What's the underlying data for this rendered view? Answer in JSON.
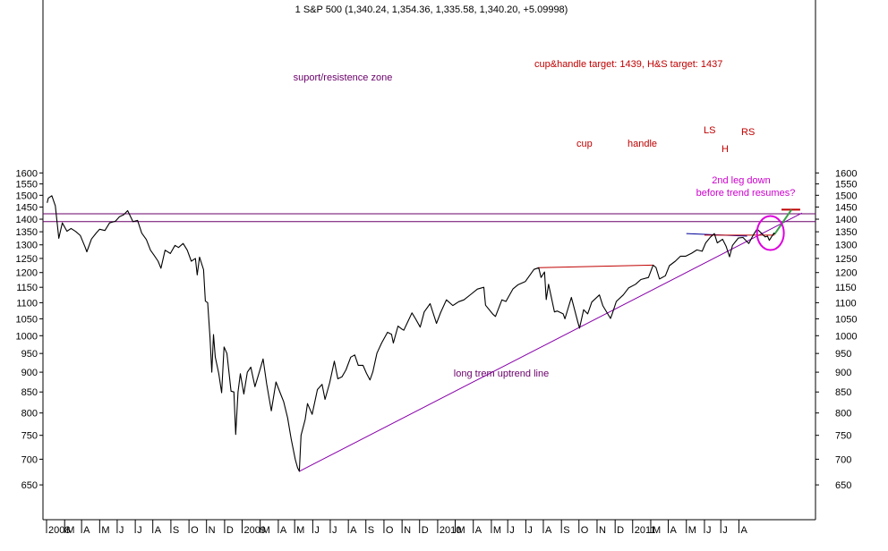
{
  "chart_data": {
    "type": "line",
    "title": "1 S&P 500 (1,340.24, 1,354.36, 1,335.58, 1,340.20, +5.09998)",
    "scale": "log",
    "ylim": [
      620,
      1600
    ],
    "y_ticks": [
      650,
      700,
      750,
      800,
      850,
      900,
      950,
      1000,
      1050,
      1100,
      1150,
      1200,
      1250,
      1300,
      1350,
      1400,
      1450,
      1500,
      1550,
      1600
    ],
    "x_ticks": [
      "2008",
      "M",
      "A",
      "M",
      "J",
      "J",
      "A",
      "S",
      "O",
      "N",
      "D",
      "2009",
      "M",
      "A",
      "M",
      "J",
      "J",
      "A",
      "S",
      "O",
      "N",
      "D",
      "2010",
      "M",
      "A",
      "M",
      "J",
      "J",
      "A",
      "S",
      "O",
      "N",
      "D",
      "2011",
      "M",
      "A",
      "M",
      "J",
      "J",
      "A"
    ],
    "series": [
      {
        "values": [
          [
            "2008-01-02",
            1468
          ],
          [
            "2008-01-04",
            1488
          ],
          [
            "2008-01-10",
            1498
          ],
          [
            "2008-01-16",
            1455
          ],
          [
            "2008-01-22",
            1325
          ],
          [
            "2008-01-28",
            1385
          ],
          [
            "2008-02-05",
            1352
          ],
          [
            "2008-02-12",
            1363
          ],
          [
            "2008-02-20",
            1351
          ],
          [
            "2008-02-28",
            1335
          ],
          [
            "2008-03-07",
            1292
          ],
          [
            "2008-03-10",
            1274
          ],
          [
            "2008-03-18",
            1322
          ],
          [
            "2008-03-26",
            1345
          ],
          [
            "2008-04-01",
            1360
          ],
          [
            "2008-04-10",
            1355
          ],
          [
            "2008-04-18",
            1385
          ],
          [
            "2008-04-28",
            1392
          ],
          [
            "2008-05-05",
            1410
          ],
          [
            "2008-05-12",
            1418
          ],
          [
            "2008-05-19",
            1435
          ],
          [
            "2008-05-28",
            1390
          ],
          [
            "2008-06-05",
            1395
          ],
          [
            "2008-06-12",
            1345
          ],
          [
            "2008-06-20",
            1320
          ],
          [
            "2008-06-27",
            1280
          ],
          [
            "2008-07-03",
            1262
          ],
          [
            "2008-07-10",
            1240
          ],
          [
            "2008-07-15",
            1215
          ],
          [
            "2008-07-22",
            1280
          ],
          [
            "2008-07-31",
            1268
          ],
          [
            "2008-08-08",
            1298
          ],
          [
            "2008-08-14",
            1290
          ],
          [
            "2008-08-22",
            1305
          ],
          [
            "2008-08-29",
            1280
          ],
          [
            "2008-09-05",
            1240
          ],
          [
            "2008-09-12",
            1250
          ],
          [
            "2008-09-15",
            1192
          ],
          [
            "2008-09-19",
            1255
          ],
          [
            "2008-09-26",
            1210
          ],
          [
            "2008-09-29",
            1105
          ],
          [
            "2008-10-03",
            1100
          ],
          [
            "2008-10-07",
            995
          ],
          [
            "2008-10-10",
            900
          ],
          [
            "2008-10-13",
            1003
          ],
          [
            "2008-10-16",
            940
          ],
          [
            "2008-10-22",
            896
          ],
          [
            "2008-10-27",
            848
          ],
          [
            "2008-10-31",
            968
          ],
          [
            "2008-11-05",
            950
          ],
          [
            "2008-11-12",
            852
          ],
          [
            "2008-11-17",
            850
          ],
          [
            "2008-11-20",
            752
          ],
          [
            "2008-11-24",
            850
          ],
          [
            "2008-11-28",
            896
          ],
          [
            "2008-12-04",
            845
          ],
          [
            "2008-12-10",
            900
          ],
          [
            "2008-12-16",
            913
          ],
          [
            "2008-12-23",
            863
          ],
          [
            "2008-12-31",
            903
          ],
          [
            "2009-01-06",
            935
          ],
          [
            "2009-01-12",
            870
          ],
          [
            "2009-01-20",
            805
          ],
          [
            "2009-01-28",
            875
          ],
          [
            "2009-02-05",
            845
          ],
          [
            "2009-02-10",
            827
          ],
          [
            "2009-02-17",
            789
          ],
          [
            "2009-02-23",
            743
          ],
          [
            "2009-03-02",
            700
          ],
          [
            "2009-03-06",
            683
          ],
          [
            "2009-03-09",
            676
          ],
          [
            "2009-03-12",
            750
          ],
          [
            "2009-03-19",
            785
          ],
          [
            "2009-03-23",
            822
          ],
          [
            "2009-03-31",
            797
          ],
          [
            "2009-04-09",
            856
          ],
          [
            "2009-04-17",
            869
          ],
          [
            "2009-04-22",
            832
          ],
          [
            "2009-04-30",
            873
          ],
          [
            "2009-05-08",
            929
          ],
          [
            "2009-05-14",
            883
          ],
          [
            "2009-05-21",
            888
          ],
          [
            "2009-05-28",
            906
          ],
          [
            "2009-06-05",
            940
          ],
          [
            "2009-06-12",
            946
          ],
          [
            "2009-06-18",
            918
          ],
          [
            "2009-06-26",
            918
          ],
          [
            "2009-07-02",
            897
          ],
          [
            "2009-07-08",
            880
          ],
          [
            "2009-07-13",
            901
          ],
          [
            "2009-07-20",
            951
          ],
          [
            "2009-07-28",
            979
          ],
          [
            "2009-08-07",
            1010
          ],
          [
            "2009-08-14",
            1004
          ],
          [
            "2009-08-17",
            979
          ],
          [
            "2009-08-25",
            1028
          ],
          [
            "2009-08-31",
            1020
          ],
          [
            "2009-09-04",
            1016
          ],
          [
            "2009-09-11",
            1042
          ],
          [
            "2009-09-18",
            1068
          ],
          [
            "2009-09-24",
            1050
          ],
          [
            "2009-10-02",
            1025
          ],
          [
            "2009-10-09",
            1071
          ],
          [
            "2009-10-19",
            1097
          ],
          [
            "2009-10-30",
            1036
          ],
          [
            "2009-11-06",
            1069
          ],
          [
            "2009-11-16",
            1109
          ],
          [
            "2009-11-27",
            1091
          ],
          [
            "2009-12-07",
            1103
          ],
          [
            "2009-12-16",
            1109
          ],
          [
            "2009-12-28",
            1127
          ],
          [
            "2010-01-08",
            1144
          ],
          [
            "2010-01-19",
            1150
          ],
          [
            "2010-01-22",
            1092
          ],
          [
            "2010-02-04",
            1063
          ],
          [
            "2010-02-08",
            1057
          ],
          [
            "2010-02-19",
            1109
          ],
          [
            "2010-02-26",
            1104
          ],
          [
            "2010-03-10",
            1145
          ],
          [
            "2010-03-19",
            1159
          ],
          [
            "2010-03-31",
            1169
          ],
          [
            "2010-04-09",
            1194
          ],
          [
            "2010-04-15",
            1211
          ],
          [
            "2010-04-23",
            1217
          ],
          [
            "2010-04-27",
            1183
          ],
          [
            "2010-05-03",
            1202
          ],
          [
            "2010-05-06",
            1110
          ],
          [
            "2010-05-10",
            1160
          ],
          [
            "2010-05-20",
            1071
          ],
          [
            "2010-05-25",
            1074
          ],
          [
            "2010-06-04",
            1065
          ],
          [
            "2010-06-07",
            1050
          ],
          [
            "2010-06-18",
            1117
          ],
          [
            "2010-06-29",
            1041
          ],
          [
            "2010-07-02",
            1022
          ],
          [
            "2010-07-09",
            1078
          ],
          [
            "2010-07-16",
            1065
          ],
          [
            "2010-07-23",
            1102
          ],
          [
            "2010-08-05",
            1125
          ],
          [
            "2010-08-11",
            1090
          ],
          [
            "2010-08-24",
            1051
          ],
          [
            "2010-08-27",
            1065
          ],
          [
            "2010-09-03",
            1104
          ],
          [
            "2010-09-15",
            1125
          ],
          [
            "2010-09-24",
            1148
          ],
          [
            "2010-10-06",
            1160
          ],
          [
            "2010-10-15",
            1176
          ],
          [
            "2010-10-28",
            1183
          ],
          [
            "2010-11-05",
            1226
          ],
          [
            "2010-11-10",
            1218
          ],
          [
            "2010-11-16",
            1178
          ],
          [
            "2010-11-26",
            1189
          ],
          [
            "2010-12-03",
            1224
          ],
          [
            "2010-12-13",
            1240
          ],
          [
            "2010-12-22",
            1258
          ],
          [
            "2010-12-31",
            1258
          ],
          [
            "2011-01-10",
            1269
          ],
          [
            "2011-01-19",
            1281
          ],
          [
            "2011-01-28",
            1276
          ],
          [
            "2011-02-03",
            1307
          ],
          [
            "2011-02-11",
            1329
          ],
          [
            "2011-02-18",
            1343
          ],
          [
            "2011-02-23",
            1307
          ],
          [
            "2011-03-04",
            1321
          ],
          [
            "2011-03-10",
            1295
          ],
          [
            "2011-03-16",
            1256
          ],
          [
            "2011-03-21",
            1298
          ],
          [
            "2011-03-31",
            1326
          ],
          [
            "2011-04-08",
            1328
          ],
          [
            "2011-04-18",
            1305
          ],
          [
            "2011-04-25",
            1335
          ],
          [
            "2011-05-02",
            1361
          ],
          [
            "2011-05-09",
            1346
          ],
          [
            "2011-05-16",
            1330
          ],
          [
            "2011-05-20",
            1333
          ],
          [
            "2011-05-23",
            1317
          ],
          [
            "2011-05-27",
            1331
          ],
          [
            "2011-05-31",
            1345
          ],
          [
            "2011-06-01",
            1340
          ]
        ]
      }
    ],
    "overlays": {
      "support_band": [
        1390,
        1422
      ],
      "trendline": {
        "from": [
          "2009-03-09",
          676
        ],
        "to": [
          "2011-07-18",
          1425
        ]
      },
      "targets_line": {
        "from": [
          "2011-06-13",
          1439
        ],
        "to": [
          "2011-07-15",
          1439
        ]
      },
      "green_projection": {
        "from": [
          "2011-06-01",
          1340
        ],
        "to": [
          "2011-06-30",
          1439
        ]
      },
      "cup_line": {
        "from": [
          "2010-04-23",
          1217
        ],
        "to": [
          "2010-11-05",
          1226
        ]
      },
      "neckline": {
        "from": [
          "2011-02-01",
          1337
        ],
        "to": [
          "2011-06-01",
          1337
        ]
      },
      "blue_line": {
        "from": [
          "2011-01-01",
          1343
        ],
        "to": [
          "2011-04-15",
          1333
        ]
      },
      "circle_center": [
        "2011-05-25",
        1345
      ]
    },
    "annotations": {
      "suport_zone": "suport/resistence zone",
      "targets": "cup&handle target: 1439,      H&S target: 1437",
      "cup": "cup",
      "handle": "handle",
      "ls": "LS",
      "h": "H",
      "rs": "RS",
      "leg_line1": "2nd leg down",
      "leg_line2": "before trend  resumes?",
      "trend": "long trem uptrend line"
    }
  }
}
